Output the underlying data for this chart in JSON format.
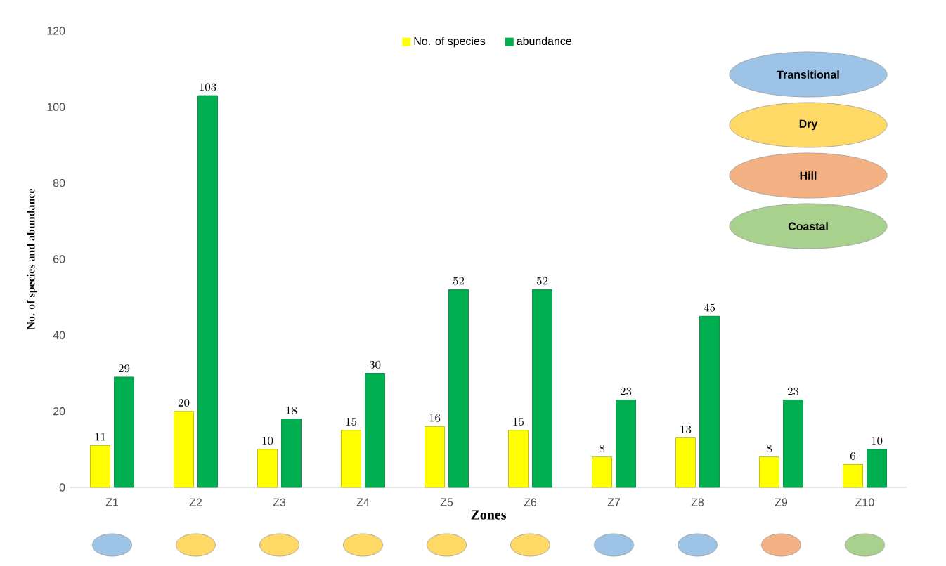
{
  "chart_data": {
    "type": "bar",
    "xlabel": "Zones",
    "ylabel": "No. of species and abundance",
    "categories": [
      "Z1",
      "Z2",
      "Z3",
      "Z4",
      "Z5",
      "Z6",
      "Z7",
      "Z8",
      "Z9",
      "Z10"
    ],
    "series": [
      {
        "name": "No. of species",
        "color": "#ffff00",
        "values": [
          11,
          20,
          10,
          15,
          16,
          15,
          8,
          13,
          8,
          6
        ]
      },
      {
        "name": "abundance",
        "color": "#00b050",
        "values": [
          29,
          103,
          18,
          30,
          52,
          52,
          23,
          45,
          23,
          10
        ]
      }
    ],
    "ylim": [
      0,
      120
    ],
    "yticks": [
      0,
      20,
      40,
      60,
      80,
      100,
      120
    ],
    "data_labels": true,
    "legend": "top",
    "annotations": [
      "Transitional",
      "Dry",
      "Hill",
      "Coastal"
    ]
  }
}
